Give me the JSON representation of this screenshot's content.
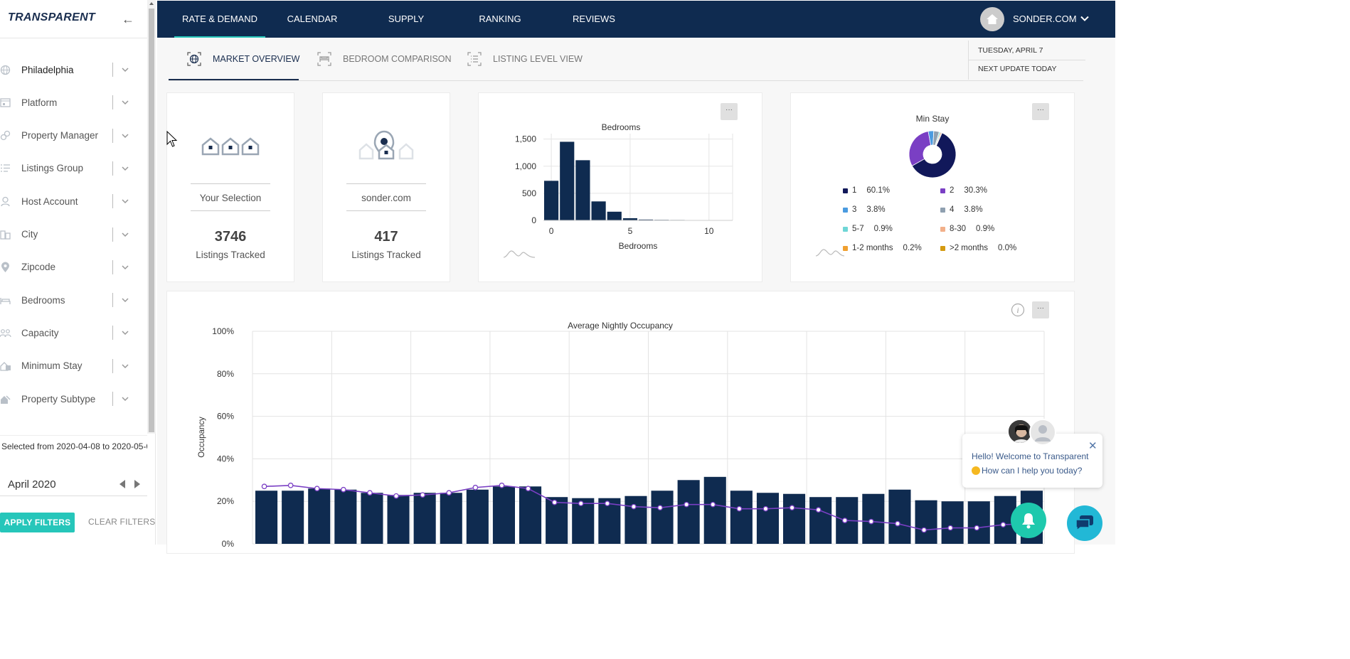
{
  "sidebar": {
    "logo": "TRANSPARENT",
    "filters": [
      {
        "label": "Philadelphia",
        "icon": "globe-icon"
      },
      {
        "label": "Platform",
        "icon": "platform-icon"
      },
      {
        "label": "Property Manager",
        "icon": "link-icon"
      },
      {
        "label": "Listings Group",
        "icon": "list-icon"
      },
      {
        "label": "Host Account",
        "icon": "host-icon"
      },
      {
        "label": "City",
        "icon": "city-icon"
      },
      {
        "label": "Zipcode",
        "icon": "location-pin-icon"
      },
      {
        "label": "Bedrooms",
        "icon": "bed-icon"
      },
      {
        "label": "Capacity",
        "icon": "people-icon"
      },
      {
        "label": "Minimum Stay",
        "icon": "calendar-stay-icon"
      },
      {
        "label": "Property Subtype",
        "icon": "house-tag-icon"
      }
    ],
    "selected_range": "Selected from 2020-04-08 to 2020-05-0",
    "month": "April 2020",
    "apply_label": "APPLY FILTERS",
    "clear_label": "CLEAR FILTERS"
  },
  "topnav": {
    "tabs": [
      "RATE & DEMAND",
      "CALENDAR",
      "SUPPLY",
      "RANKING",
      "REVIEWS"
    ],
    "active": "RATE & DEMAND",
    "user": "SONDER.COM"
  },
  "subnav": {
    "tabs": [
      "MARKET OVERVIEW",
      "BEDROOM COMPARISON",
      "LISTING LEVEL VIEW"
    ],
    "active": "MARKET OVERVIEW",
    "date": "TUESDAY, APRIL 7",
    "update": "NEXT UPDATE TODAY"
  },
  "cards": {
    "selection": {
      "label": "Your Selection",
      "value": "3746",
      "sub": "Listings Tracked"
    },
    "company": {
      "label": "sonder.com",
      "value": "417",
      "sub": "Listings Tracked"
    },
    "menu_label": "···"
  },
  "min_stay": {
    "title": "Min Stay",
    "legend": [
      {
        "label": "1",
        "pct": "60.1%",
        "color": "#11185a"
      },
      {
        "label": "2",
        "pct": "30.3%",
        "color": "#7a3fc4"
      },
      {
        "label": "3",
        "pct": "3.8%",
        "color": "#4a9be0"
      },
      {
        "label": "4",
        "pct": "3.8%",
        "color": "#8fa0b0"
      },
      {
        "label": "5-7",
        "pct": "0.9%",
        "color": "#6fd6d6"
      },
      {
        "label": "8-30",
        "pct": "0.9%",
        "color": "#f2b08a"
      },
      {
        "label": "1-2 months",
        "pct": "0.2%",
        "color": "#f0a030"
      },
      {
        "label": ">2 months",
        "pct": "0.0%",
        "color": "#d49a10"
      }
    ]
  },
  "chat": {
    "line1": "Hello! Welcome to Transparent",
    "line2": "How can I help you today?"
  },
  "chart_data": [
    {
      "type": "bar",
      "title": "Bedrooms",
      "xlabel": "Bedrooms",
      "ylabel": "",
      "x": [
        0,
        1,
        2,
        3,
        4,
        5,
        6,
        7,
        8,
        9,
        10,
        11
      ],
      "values": [
        730,
        1450,
        1110,
        350,
        160,
        40,
        15,
        10,
        8,
        5,
        5,
        4
      ],
      "xlim": [
        -0.5,
        11.5
      ],
      "ylim": [
        0,
        1600
      ],
      "xticks": [
        "0",
        "5",
        "10"
      ],
      "yticks": [
        "0",
        "500",
        "1,000",
        "1,500"
      ],
      "color": "#0f2b50",
      "grid": true
    },
    {
      "type": "pie",
      "title": "Min Stay",
      "categories": [
        "1",
        "2",
        "3",
        "4",
        "5-7",
        "8-30",
        "1-2 months",
        ">2 months"
      ],
      "values": [
        60.1,
        30.3,
        3.8,
        3.8,
        0.9,
        0.9,
        0.2,
        0.0
      ],
      "legend_position": "bottom"
    },
    {
      "type": "bar",
      "title": "Average Nightly Occupancy",
      "xlabel": "",
      "ylabel": "Occupancy",
      "series": [
        {
          "type": "bar",
          "values": [
            25,
            25,
            26,
            25.5,
            24,
            23,
            24,
            24,
            25.5,
            27,
            27,
            22,
            21.5,
            21.5,
            22.5,
            25,
            30,
            31.5,
            25,
            24,
            23.5,
            22,
            22,
            23.5,
            25.5,
            20.5,
            20,
            20,
            22.5,
            25
          ],
          "color": "#0f2b50"
        },
        {
          "type": "line",
          "values": [
            27,
            27.5,
            26,
            25.5,
            24,
            22.5,
            23,
            24,
            26.5,
            27.5,
            26,
            19.5,
            19,
            19,
            17.5,
            17,
            18.5,
            18.5,
            16.5,
            16.5,
            17,
            16,
            11,
            10.5,
            9.5,
            6.5,
            7.5,
            7.5,
            9,
            9.5
          ],
          "color": "#7a3fc4"
        }
      ],
      "ylim": [
        0,
        100
      ],
      "yticks": [
        "0%",
        "20%",
        "40%",
        "60%",
        "80%",
        "100%"
      ],
      "grid": true
    }
  ]
}
